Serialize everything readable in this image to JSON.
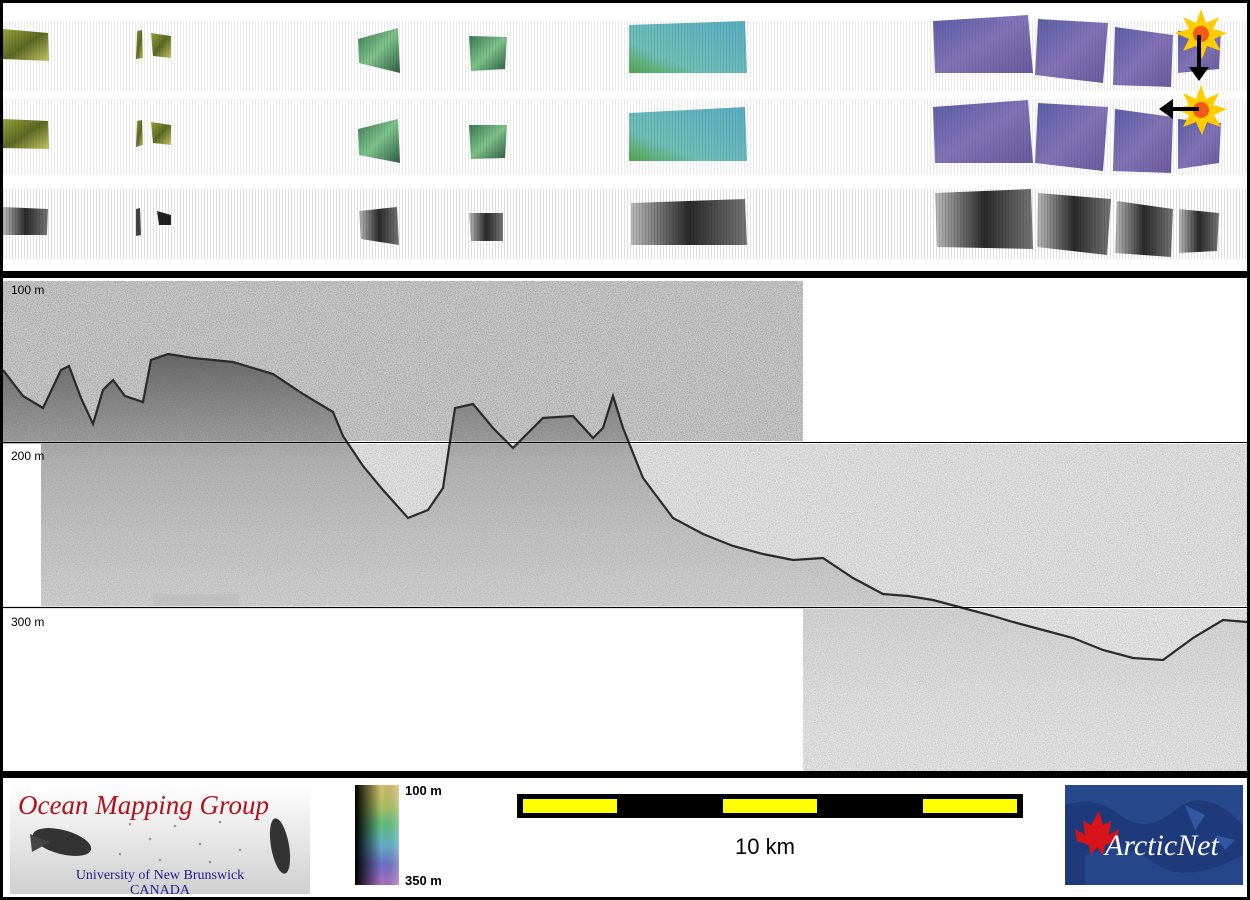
{
  "depth_labels": [
    "100 m",
    "200 m",
    "300 m"
  ],
  "logo": {
    "title": "Ocean Mapping Group",
    "subtitle_line1": "University of New Brunswick",
    "subtitle_line2": "CANADA"
  },
  "colorbar": {
    "top_label": "100 m",
    "bottom_label": "350 m"
  },
  "scalebar": {
    "label": "10 km",
    "fill_color": "#ffff00",
    "bar_color": "#000000"
  },
  "arcticnet": {
    "label": "ArcticNet",
    "bg_color": "#1e3a7a",
    "leaf_color": "#d7141a"
  },
  "colors": {
    "frame": "#000000",
    "panel": "#ffffff",
    "sun": "#ffcc00",
    "logo_red": "#b3121a",
    "logo_blue": "#1c1c8c"
  },
  "icons": [
    "sun-illumination-icon",
    "arrow-down-icon",
    "arrow-left-icon",
    "maple-leaf-icon"
  ]
}
